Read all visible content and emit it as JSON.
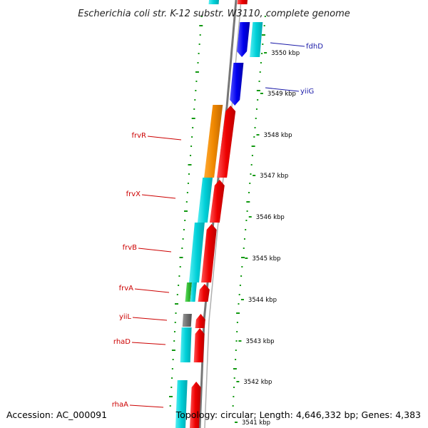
{
  "title": "Escherichia coli str. K-12 substr. W3110, complete genome",
  "accession": "Accession: AC_000091",
  "topology": "Topology: circular; Length: 4,646,332 bp; Genes: 4,383",
  "ticks": [
    {
      "label": "3550 kbp"
    },
    {
      "label": "3549 kbp"
    },
    {
      "label": "3548 kbp"
    },
    {
      "label": "3547 kbp"
    },
    {
      "label": "3546 kbp"
    },
    {
      "label": "3545 kbp"
    },
    {
      "label": "3544 kbp"
    },
    {
      "label": "3543 kbp"
    },
    {
      "label": "3542 kbp"
    },
    {
      "label": "3541 kbp"
    }
  ],
  "gene_labels": [
    {
      "name": "fdhD",
      "color": "#1a1aa8"
    },
    {
      "name": "yiiG",
      "color": "#1a1aa8"
    },
    {
      "name": "frvR",
      "color": "#cc0000"
    },
    {
      "name": "frvX",
      "color": "#cc0000"
    },
    {
      "name": "frvB",
      "color": "#cc0000"
    },
    {
      "name": "frvA",
      "color": "#cc0000"
    },
    {
      "name": "yiiL",
      "color": "#cc0000"
    },
    {
      "name": "rhaD",
      "color": "#cc0000"
    },
    {
      "name": "rhaA",
      "color": "#cc0000"
    }
  ],
  "colors": {
    "cds_forward": "#0000ee",
    "cds_reverse": "#ee0000",
    "cog_cyan": "#00d0d8",
    "cog_orange": "#f08800",
    "cog_green": "#33bb33",
    "cog_gray": "#707070",
    "gc_dots": "#119911",
    "backbone": "#777777"
  }
}
